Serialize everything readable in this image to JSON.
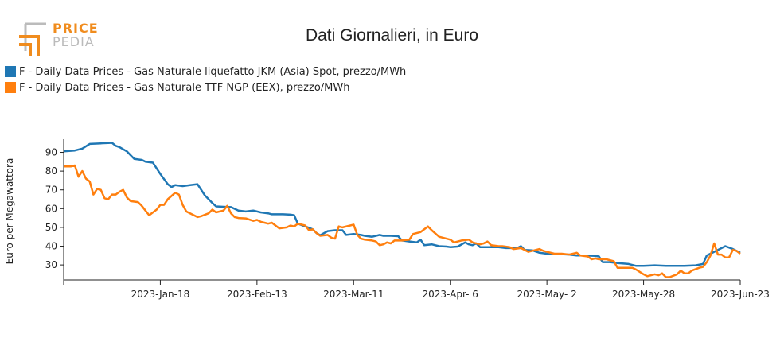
{
  "logo": {
    "price": "PRICE",
    "pedia": "PEDIA",
    "accent": "#f08c1e"
  },
  "title": "Dati Giornalieri, in Euro",
  "chart_data": {
    "type": "line",
    "title": "Dati Giornalieri, in Euro",
    "xlabel": "",
    "ylabel": "Euro per Megawattora",
    "ylim": [
      22,
      97
    ],
    "yticks": [
      30,
      40,
      50,
      60,
      70,
      80,
      90
    ],
    "xlim": [
      "2022-12-23",
      "2023-06-23"
    ],
    "xticks": [
      {
        "date": "2023-01-18",
        "label": "2023-Jan-18"
      },
      {
        "date": "2023-02-13",
        "label": "2023-Feb-13"
      },
      {
        "date": "2023-03-11",
        "label": "2023-Mar-11"
      },
      {
        "date": "2023-04-06",
        "label": "2023-Apr- 6"
      },
      {
        "date": "2023-05-02",
        "label": "2023-May- 2"
      },
      {
        "date": "2023-05-28",
        "label": "2023-May-28"
      },
      {
        "date": "2023-06-23",
        "label": "2023-Jun-23"
      }
    ],
    "grid": false,
    "legend_position": "top-left",
    "series": [
      {
        "name": "F - Daily Data Prices - Gas Naturale liquefatto JKM (Asia) Spot, prezzo/MWh",
        "color": "#1f77b4",
        "points": [
          [
            "2022-12-23",
            90.5
          ],
          [
            "2022-12-26",
            91.0
          ],
          [
            "2022-12-28",
            92.0
          ],
          [
            "2022-12-30",
            94.5
          ],
          [
            "2023-01-02",
            94.8
          ],
          [
            "2023-01-04",
            95.0
          ],
          [
            "2023-01-05",
            95.1
          ],
          [
            "2023-01-06",
            93.5
          ],
          [
            "2023-01-07",
            92.8
          ],
          [
            "2023-01-09",
            90.5
          ],
          [
            "2023-01-10",
            88.5
          ],
          [
            "2023-01-11",
            86.5
          ],
          [
            "2023-01-13",
            86.0
          ],
          [
            "2023-01-14",
            85.0
          ],
          [
            "2023-01-16",
            84.5
          ],
          [
            "2023-01-18",
            78.5
          ],
          [
            "2023-01-20",
            73.0
          ],
          [
            "2023-01-21",
            71.5
          ],
          [
            "2023-01-22",
            72.5
          ],
          [
            "2023-01-24",
            72.0
          ],
          [
            "2023-01-26",
            72.5
          ],
          [
            "2023-01-28",
            73.0
          ],
          [
            "2023-01-30",
            67.0
          ],
          [
            "2023-02-01",
            63.0
          ],
          [
            "2023-02-02",
            61.2
          ],
          [
            "2023-02-04",
            61.0
          ],
          [
            "2023-02-06",
            60.8
          ],
          [
            "2023-02-08",
            59.0
          ],
          [
            "2023-02-10",
            58.5
          ],
          [
            "2023-02-12",
            59.0
          ],
          [
            "2023-02-14",
            58.0
          ],
          [
            "2023-02-16",
            57.5
          ],
          [
            "2023-02-17",
            57.0
          ],
          [
            "2023-02-20",
            57.0
          ],
          [
            "2023-02-22",
            56.8
          ],
          [
            "2023-02-23",
            56.5
          ],
          [
            "2023-02-24",
            52.0
          ],
          [
            "2023-02-26",
            50.5
          ],
          [
            "2023-02-28",
            49.0
          ],
          [
            "2023-03-01",
            47.0
          ],
          [
            "2023-03-02",
            45.8
          ],
          [
            "2023-03-04",
            48.0
          ],
          [
            "2023-03-06",
            48.5
          ],
          [
            "2023-03-08",
            48.5
          ],
          [
            "2023-03-09",
            46.0
          ],
          [
            "2023-03-11",
            46.5
          ],
          [
            "2023-03-13",
            46.0
          ],
          [
            "2023-03-14",
            45.5
          ],
          [
            "2023-03-16",
            45.0
          ],
          [
            "2023-03-18",
            46.0
          ],
          [
            "2023-03-19",
            45.5
          ],
          [
            "2023-03-21",
            45.5
          ],
          [
            "2023-03-23",
            45.3
          ],
          [
            "2023-03-24",
            43.0
          ],
          [
            "2023-03-26",
            42.5
          ],
          [
            "2023-03-28",
            42.0
          ],
          [
            "2023-03-29",
            43.5
          ],
          [
            "2023-03-30",
            40.5
          ],
          [
            "2023-04-01",
            41.0
          ],
          [
            "2023-04-03",
            40.0
          ],
          [
            "2023-04-05",
            39.8
          ],
          [
            "2023-04-06",
            39.5
          ],
          [
            "2023-04-08",
            39.8
          ],
          [
            "2023-04-10",
            42.0
          ],
          [
            "2023-04-11",
            41.0
          ],
          [
            "2023-04-12",
            40.5
          ],
          [
            "2023-04-13",
            41.5
          ],
          [
            "2023-04-14",
            39.5
          ],
          [
            "2023-04-17",
            39.5
          ],
          [
            "2023-04-19",
            39.5
          ],
          [
            "2023-04-21",
            39.0
          ],
          [
            "2023-04-24",
            39.0
          ],
          [
            "2023-04-25",
            40.0
          ],
          [
            "2023-04-26",
            38.0
          ],
          [
            "2023-04-28",
            37.8
          ],
          [
            "2023-04-30",
            36.5
          ],
          [
            "2023-05-02",
            36.0
          ],
          [
            "2023-05-05",
            35.8
          ],
          [
            "2023-05-08",
            35.5
          ],
          [
            "2023-05-10",
            35.0
          ],
          [
            "2023-05-12",
            35.0
          ],
          [
            "2023-05-15",
            34.8
          ],
          [
            "2023-05-16",
            34.5
          ],
          [
            "2023-05-17",
            31.5
          ],
          [
            "2023-05-19",
            31.5
          ],
          [
            "2023-05-21",
            31.0
          ],
          [
            "2023-05-24",
            30.5
          ],
          [
            "2023-05-26",
            29.5
          ],
          [
            "2023-05-28",
            29.5
          ],
          [
            "2023-05-31",
            29.8
          ],
          [
            "2023-06-03",
            29.5
          ],
          [
            "2023-06-06",
            29.5
          ],
          [
            "2023-06-08",
            29.5
          ],
          [
            "2023-06-11",
            29.8
          ],
          [
            "2023-06-13",
            30.5
          ],
          [
            "2023-06-14",
            35.0
          ],
          [
            "2023-06-16",
            37.0
          ],
          [
            "2023-06-19",
            40.0
          ],
          [
            "2023-06-21",
            38.5
          ],
          [
            "2023-06-23",
            36.5
          ]
        ]
      },
      {
        "name": "F - Daily Data Prices - Gas Naturale TTF NGP (EEX), prezzo/MWh",
        "color": "#ff7f0e",
        "points": [
          [
            "2022-12-23",
            82.5
          ],
          [
            "2022-12-25",
            82.5
          ],
          [
            "2022-12-26",
            83.0
          ],
          [
            "2022-12-27",
            77.0
          ],
          [
            "2022-12-28",
            80.0
          ],
          [
            "2022-12-29",
            76.0
          ],
          [
            "2022-12-30",
            74.5
          ],
          [
            "2022-12-31",
            67.5
          ],
          [
            "2023-01-01",
            70.5
          ],
          [
            "2023-01-02",
            70.0
          ],
          [
            "2023-01-03",
            65.5
          ],
          [
            "2023-01-04",
            65.0
          ],
          [
            "2023-01-05",
            67.5
          ],
          [
            "2023-01-06",
            67.5
          ],
          [
            "2023-01-07",
            69.0
          ],
          [
            "2023-01-08",
            70.0
          ],
          [
            "2023-01-09",
            66.0
          ],
          [
            "2023-01-10",
            64.0
          ],
          [
            "2023-01-12",
            63.5
          ],
          [
            "2023-01-13",
            61.5
          ],
          [
            "2023-01-14",
            59.0
          ],
          [
            "2023-01-15",
            56.5
          ],
          [
            "2023-01-17",
            59.5
          ],
          [
            "2023-01-18",
            62.0
          ],
          [
            "2023-01-19",
            62.0
          ],
          [
            "2023-01-20",
            65.0
          ],
          [
            "2023-01-22",
            68.5
          ],
          [
            "2023-01-23",
            67.5
          ],
          [
            "2023-01-24",
            62.0
          ],
          [
            "2023-01-25",
            58.5
          ],
          [
            "2023-01-26",
            57.5
          ],
          [
            "2023-01-28",
            55.5
          ],
          [
            "2023-01-29",
            56.0
          ],
          [
            "2023-01-31",
            57.5
          ],
          [
            "2023-02-01",
            59.5
          ],
          [
            "2023-02-02",
            58.0
          ],
          [
            "2023-02-04",
            59.0
          ],
          [
            "2023-02-05",
            61.5
          ],
          [
            "2023-02-06",
            57.5
          ],
          [
            "2023-02-07",
            55.5
          ],
          [
            "2023-02-08",
            55.0
          ],
          [
            "2023-02-10",
            54.8
          ],
          [
            "2023-02-12",
            53.5
          ],
          [
            "2023-02-13",
            54.0
          ],
          [
            "2023-02-14",
            53.0
          ],
          [
            "2023-02-15",
            52.5
          ],
          [
            "2023-02-16",
            52.0
          ],
          [
            "2023-02-17",
            52.5
          ],
          [
            "2023-02-19",
            49.5
          ],
          [
            "2023-02-21",
            50.0
          ],
          [
            "2023-02-22",
            51.0
          ],
          [
            "2023-02-23",
            50.5
          ],
          [
            "2023-02-24",
            52.0
          ],
          [
            "2023-02-26",
            51.0
          ],
          [
            "2023-02-27",
            48.5
          ],
          [
            "2023-02-28",
            49.0
          ],
          [
            "2023-03-01",
            47.0
          ],
          [
            "2023-03-02",
            45.5
          ],
          [
            "2023-03-04",
            46.0
          ],
          [
            "2023-03-05",
            44.5
          ],
          [
            "2023-03-06",
            44.0
          ],
          [
            "2023-03-07",
            50.5
          ],
          [
            "2023-03-08",
            50.0
          ],
          [
            "2023-03-10",
            51.0
          ],
          [
            "2023-03-11",
            51.5
          ],
          [
            "2023-03-12",
            46.0
          ],
          [
            "2023-03-13",
            44.0
          ],
          [
            "2023-03-14",
            43.5
          ],
          [
            "2023-03-16",
            43.0
          ],
          [
            "2023-03-17",
            42.5
          ],
          [
            "2023-03-18",
            40.5
          ],
          [
            "2023-03-19",
            41.0
          ],
          [
            "2023-03-20",
            42.0
          ],
          [
            "2023-03-21",
            41.5
          ],
          [
            "2023-03-22",
            43.0
          ],
          [
            "2023-03-24",
            43.0
          ],
          [
            "2023-03-26",
            43.5
          ],
          [
            "2023-03-27",
            46.5
          ],
          [
            "2023-03-29",
            47.5
          ],
          [
            "2023-03-31",
            50.5
          ],
          [
            "2023-04-01",
            48.5
          ],
          [
            "2023-04-03",
            45.0
          ],
          [
            "2023-04-05",
            44.0
          ],
          [
            "2023-04-06",
            43.5
          ],
          [
            "2023-04-07",
            42.0
          ],
          [
            "2023-04-09",
            43.0
          ],
          [
            "2023-04-11",
            43.5
          ],
          [
            "2023-04-12",
            42.0
          ],
          [
            "2023-04-14",
            41.0
          ],
          [
            "2023-04-15",
            41.5
          ],
          [
            "2023-04-16",
            42.5
          ],
          [
            "2023-04-17",
            40.5
          ],
          [
            "2023-04-19",
            40.0
          ],
          [
            "2023-04-20",
            40.0
          ],
          [
            "2023-04-22",
            39.5
          ],
          [
            "2023-04-23",
            38.5
          ],
          [
            "2023-04-25",
            39.0
          ],
          [
            "2023-04-26",
            38.0
          ],
          [
            "2023-04-27",
            37.0
          ],
          [
            "2023-04-28",
            37.5
          ],
          [
            "2023-04-30",
            38.5
          ],
          [
            "2023-05-01",
            37.5
          ],
          [
            "2023-05-02",
            37.0
          ],
          [
            "2023-05-04",
            36.0
          ],
          [
            "2023-05-06",
            36.0
          ],
          [
            "2023-05-08",
            35.5
          ],
          [
            "2023-05-10",
            36.5
          ],
          [
            "2023-05-11",
            35.0
          ],
          [
            "2023-05-13",
            34.5
          ],
          [
            "2023-05-14",
            33.0
          ],
          [
            "2023-05-15",
            33.5
          ],
          [
            "2023-05-16",
            33.0
          ],
          [
            "2023-05-18",
            33.0
          ],
          [
            "2023-05-20",
            32.0
          ],
          [
            "2023-05-21",
            28.5
          ],
          [
            "2023-05-23",
            28.5
          ],
          [
            "2023-05-25",
            28.5
          ],
          [
            "2023-05-26",
            27.5
          ],
          [
            "2023-05-28",
            25.0
          ],
          [
            "2023-05-29",
            24.0
          ],
          [
            "2023-05-31",
            25.0
          ],
          [
            "2023-06-01",
            24.5
          ],
          [
            "2023-06-02",
            25.5
          ],
          [
            "2023-06-03",
            23.5
          ],
          [
            "2023-06-04",
            23.5
          ],
          [
            "2023-06-06",
            25.0
          ],
          [
            "2023-06-07",
            27.0
          ],
          [
            "2023-06-08",
            25.5
          ],
          [
            "2023-06-09",
            25.5
          ],
          [
            "2023-06-10",
            27.0
          ],
          [
            "2023-06-12",
            28.5
          ],
          [
            "2023-06-13",
            29.0
          ],
          [
            "2023-06-14",
            31.5
          ],
          [
            "2023-06-15",
            35.0
          ],
          [
            "2023-06-16",
            41.5
          ],
          [
            "2023-06-17",
            35.5
          ],
          [
            "2023-06-18",
            35.5
          ],
          [
            "2023-06-19",
            34.0
          ],
          [
            "2023-06-20",
            34.0
          ],
          [
            "2023-06-21",
            38.0
          ],
          [
            "2023-06-22",
            37.5
          ],
          [
            "2023-06-23",
            36.0
          ]
        ]
      }
    ]
  }
}
